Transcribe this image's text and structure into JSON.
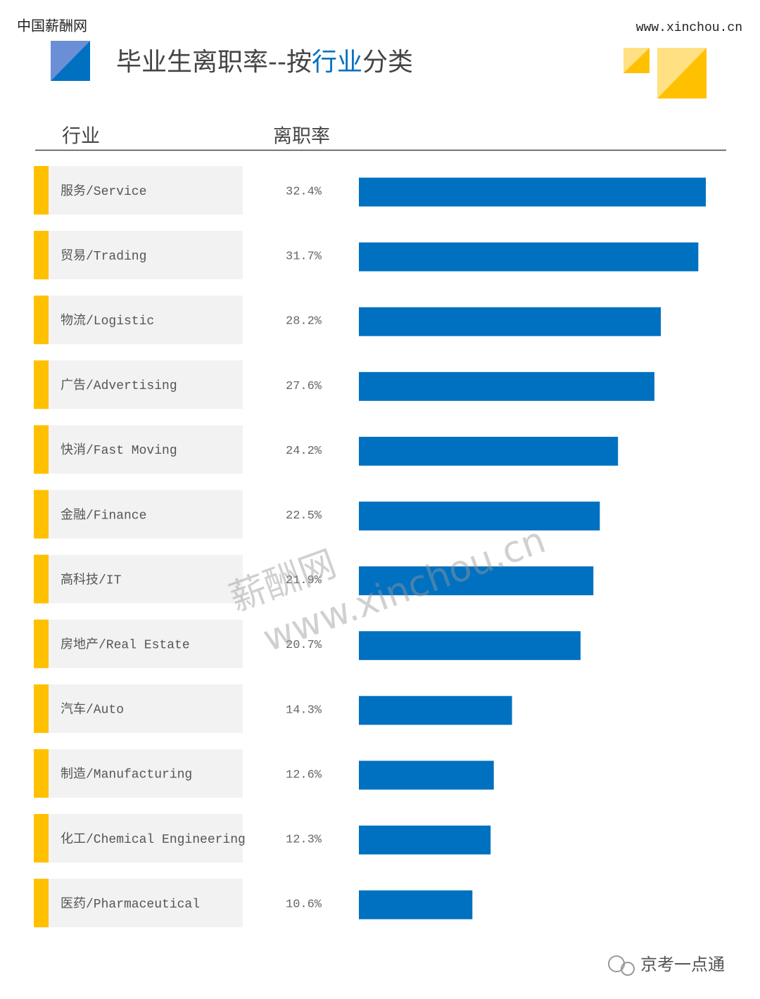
{
  "header": {
    "brand": "中国薪酬网",
    "url": "www.xinchou.cn"
  },
  "chart_data": {
    "type": "bar",
    "title": "毕业生离职率--按行业分类",
    "title_highlight": "行业",
    "category_header": "行业",
    "value_header": "离职率",
    "categories": [
      "服务/Service",
      "贸易/Trading",
      "物流/Logistic",
      "广告/Advertising",
      "快消/Fast Moving",
      "金融/Finance",
      "高科技/IT",
      "房地产/Real Estate",
      "汽车/Auto",
      "制造/Manufacturing",
      "化工/Chemical Engineering",
      "医药/Pharmaceutical"
    ],
    "values": [
      32.4,
      31.7,
      28.2,
      27.6,
      24.2,
      22.5,
      21.9,
      20.7,
      14.3,
      12.6,
      12.3,
      10.6
    ],
    "value_labels": [
      "32.4%",
      "31.7%",
      "28.2%",
      "27.6%",
      "24.2%",
      "22.5%",
      "21.9%",
      "20.7%",
      "14.3%",
      "12.6%",
      "12.3%",
      "10.6%"
    ],
    "color": "#0070c0"
  },
  "watermark": {
    "line1": "薪酬网",
    "line2": "www.xinchou.cn"
  },
  "footer": "京考一点通"
}
